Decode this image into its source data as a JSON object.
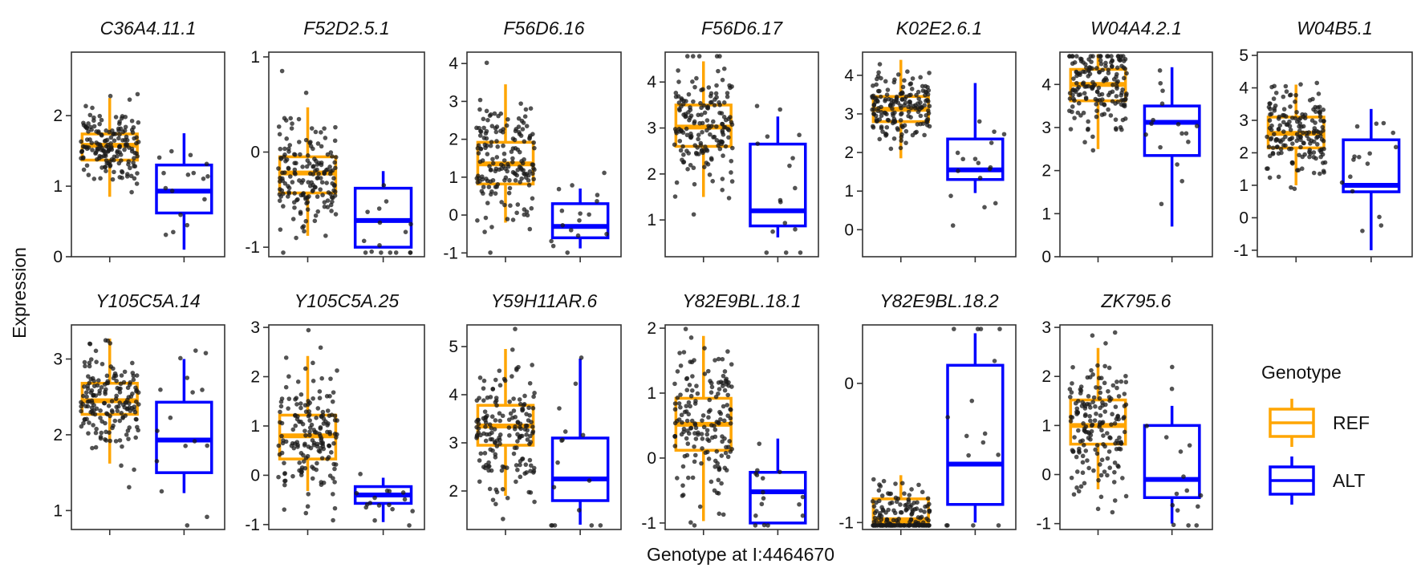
{
  "chart_data": {
    "type": "box",
    "xlabel": "Genotype at I:4464670",
    "ylabel": "Expression",
    "legend": {
      "title": "Genotype",
      "position": "right",
      "entries": [
        {
          "label": "REF",
          "color": "#FFA500"
        },
        {
          "label": "ALT",
          "color": "#0000FF"
        }
      ]
    },
    "colors": {
      "REF": "#FFA500",
      "ALT": "#0000FF",
      "points": "#1a1a1a"
    },
    "panels": [
      {
        "title": "C36A4.11.1",
        "ylim": [
          0,
          2.9
        ],
        "yticks": [
          0,
          1,
          2
        ],
        "ytick_labels": [
          "0",
          "1",
          "2"
        ],
        "ref": {
          "q1": 1.37,
          "median": 1.58,
          "q3": 1.74,
          "whisker_low": 0.85,
          "whisker_high": 2.25,
          "n_points": 170
        },
        "alt": {
          "q1": 0.62,
          "median": 0.93,
          "q3": 1.3,
          "whisker_low": 0.1,
          "whisker_high": 1.75,
          "n_points": 16
        }
      },
      {
        "title": "F52D2.5.1",
        "ylim": [
          -1.1,
          1.05
        ],
        "yticks": [
          -1,
          0,
          1
        ],
        "ytick_labels": [
          "-1",
          "0",
          "1"
        ],
        "ref": {
          "q1": -0.43,
          "median": -0.22,
          "q3": -0.05,
          "whisker_low": -0.88,
          "whisker_high": 0.47,
          "n_points": 170
        },
        "alt": {
          "q1": -1.0,
          "median": -0.72,
          "q3": -0.38,
          "whisker_low": -1.0,
          "whisker_high": -0.2,
          "n_points": 16
        }
      },
      {
        "title": "F56D6.16",
        "ylim": [
          -1.1,
          4.3
        ],
        "yticks": [
          -1,
          0,
          1,
          2,
          3,
          4
        ],
        "ytick_labels": [
          "-1",
          "0",
          "1",
          "2",
          "3",
          "4"
        ],
        "ref": {
          "q1": 0.82,
          "median": 1.35,
          "q3": 1.92,
          "whisker_low": -0.2,
          "whisker_high": 3.45,
          "n_points": 170
        },
        "alt": {
          "q1": -0.6,
          "median": -0.3,
          "q3": 0.3,
          "whisker_low": -0.88,
          "whisker_high": 0.7,
          "n_points": 16
        }
      },
      {
        "title": "F56D6.17",
        "ylim": [
          0.2,
          4.65
        ],
        "yticks": [
          1,
          2,
          3,
          4
        ],
        "ytick_labels": [
          "1",
          "2",
          "3",
          "4"
        ],
        "ref": {
          "q1": 2.6,
          "median": 3.02,
          "q3": 3.5,
          "whisker_low": 1.5,
          "whisker_high": 4.45,
          "n_points": 170
        },
        "alt": {
          "q1": 0.87,
          "median": 1.2,
          "q3": 2.65,
          "whisker_low": 0.62,
          "whisker_high": 3.25,
          "n_points": 16
        }
      },
      {
        "title": "K02E2.6.1",
        "ylim": [
          -0.7,
          4.6
        ],
        "yticks": [
          0,
          1,
          2,
          3,
          4
        ],
        "ytick_labels": [
          "0",
          "1",
          "2",
          "3",
          "4"
        ],
        "ref": {
          "q1": 2.8,
          "median": 3.12,
          "q3": 3.45,
          "whisker_low": 1.85,
          "whisker_high": 4.4,
          "n_points": 170
        },
        "alt": {
          "q1": 1.3,
          "median": 1.55,
          "q3": 2.35,
          "whisker_low": 0.95,
          "whisker_high": 3.8,
          "n_points": 16
        }
      },
      {
        "title": "W04A4.2.1",
        "ylim": [
          0,
          4.75
        ],
        "yticks": [
          0,
          1,
          2,
          3,
          4
        ],
        "ytick_labels": [
          "0",
          "1",
          "2",
          "3",
          "4"
        ],
        "ref": {
          "q1": 3.62,
          "median": 4.0,
          "q3": 4.35,
          "whisker_low": 2.5,
          "whisker_high": 4.7,
          "n_points": 170
        },
        "alt": {
          "q1": 2.35,
          "median": 3.12,
          "q3": 3.5,
          "whisker_low": 0.7,
          "whisker_high": 4.4,
          "n_points": 16
        }
      },
      {
        "title": "W04B5.1",
        "ylim": [
          -1.2,
          5.1
        ],
        "yticks": [
          -1,
          0,
          1,
          2,
          3,
          4,
          5
        ],
        "ytick_labels": [
          "-1",
          "0",
          "1",
          "2",
          "3",
          "4",
          "5"
        ],
        "ref": {
          "q1": 2.15,
          "median": 2.6,
          "q3": 3.1,
          "whisker_low": 1.0,
          "whisker_high": 4.1,
          "n_points": 170
        },
        "alt": {
          "q1": 0.8,
          "median": 1.0,
          "q3": 2.4,
          "whisker_low": -1.0,
          "whisker_high": 3.35,
          "n_points": 16
        }
      },
      {
        "title": "Y105C5A.14",
        "ylim": [
          0.75,
          3.45
        ],
        "yticks": [
          1,
          2,
          3
        ],
        "ytick_labels": [
          "1",
          "2",
          "3"
        ],
        "ref": {
          "q1": 2.27,
          "median": 2.45,
          "q3": 2.68,
          "whisker_low": 1.62,
          "whisker_high": 3.27,
          "n_points": 170
        },
        "alt": {
          "q1": 1.5,
          "median": 1.93,
          "q3": 2.43,
          "whisker_low": 1.23,
          "whisker_high": 3.0,
          "n_points": 16
        }
      },
      {
        "title": "Y105C5A.25",
        "ylim": [
          -1.1,
          3.05
        ],
        "yticks": [
          -1,
          0,
          1,
          2,
          3
        ],
        "ytick_labels": [
          "-1",
          "0",
          "1",
          "2",
          "3"
        ],
        "ref": {
          "q1": 0.33,
          "median": 0.8,
          "q3": 1.22,
          "whisker_low": -0.32,
          "whisker_high": 2.42,
          "n_points": 170
        },
        "alt": {
          "q1": -0.57,
          "median": -0.4,
          "q3": -0.23,
          "whisker_low": -0.95,
          "whisker_high": -0.05,
          "n_points": 16
        }
      },
      {
        "title": "Y59H11AR.6",
        "ylim": [
          1.2,
          5.45
        ],
        "yticks": [
          2,
          3,
          4,
          5
        ],
        "ytick_labels": [
          "2",
          "3",
          "4",
          "5"
        ],
        "ref": {
          "q1": 2.95,
          "median": 3.35,
          "q3": 3.78,
          "whisker_low": 1.9,
          "whisker_high": 4.95,
          "n_points": 170
        },
        "alt": {
          "q1": 1.8,
          "median": 2.25,
          "q3": 3.1,
          "whisker_low": 1.3,
          "whisker_high": 4.75,
          "n_points": 16
        }
      },
      {
        "title": "Y82E9BL.18.1",
        "ylim": [
          -1.1,
          2.05
        ],
        "yticks": [
          -1,
          0,
          1,
          2
        ],
        "ytick_labels": [
          "-1",
          "0",
          "1",
          "2"
        ],
        "ref": {
          "q1": 0.12,
          "median": 0.52,
          "q3": 0.92,
          "whisker_low": -0.97,
          "whisker_high": 1.88,
          "n_points": 170
        },
        "alt": {
          "q1": -1.0,
          "median": -0.52,
          "q3": -0.22,
          "whisker_low": -1.0,
          "whisker_high": 0.3,
          "n_points": 16
        }
      },
      {
        "title": "Y82E9BL.18.2",
        "ylim": [
          -1.05,
          0.42
        ],
        "yticks": [
          -1,
          0
        ],
        "ytick_labels": [
          "-1",
          "0"
        ],
        "ref": {
          "q1": -1.0,
          "median": -0.98,
          "q3": -0.83,
          "whisker_low": -1.0,
          "whisker_high": -0.66,
          "n_points": 170
        },
        "alt": {
          "q1": -0.87,
          "median": -0.58,
          "q3": 0.13,
          "whisker_low": -1.0,
          "whisker_high": 0.36,
          "n_points": 16
        }
      },
      {
        "title": "ZK795.6",
        "ylim": [
          -1.12,
          3.05
        ],
        "yticks": [
          -1,
          0,
          1,
          2,
          3
        ],
        "ytick_labels": [
          "-1",
          "0",
          "1",
          "2",
          "3"
        ],
        "ref": {
          "q1": 0.62,
          "median": 1.0,
          "q3": 1.52,
          "whisker_low": -0.3,
          "whisker_high": 2.58,
          "n_points": 170
        },
        "alt": {
          "q1": -0.47,
          "median": -0.1,
          "q3": 1.0,
          "whisker_low": -1.0,
          "whisker_high": 1.4,
          "n_points": 16
        }
      }
    ]
  }
}
